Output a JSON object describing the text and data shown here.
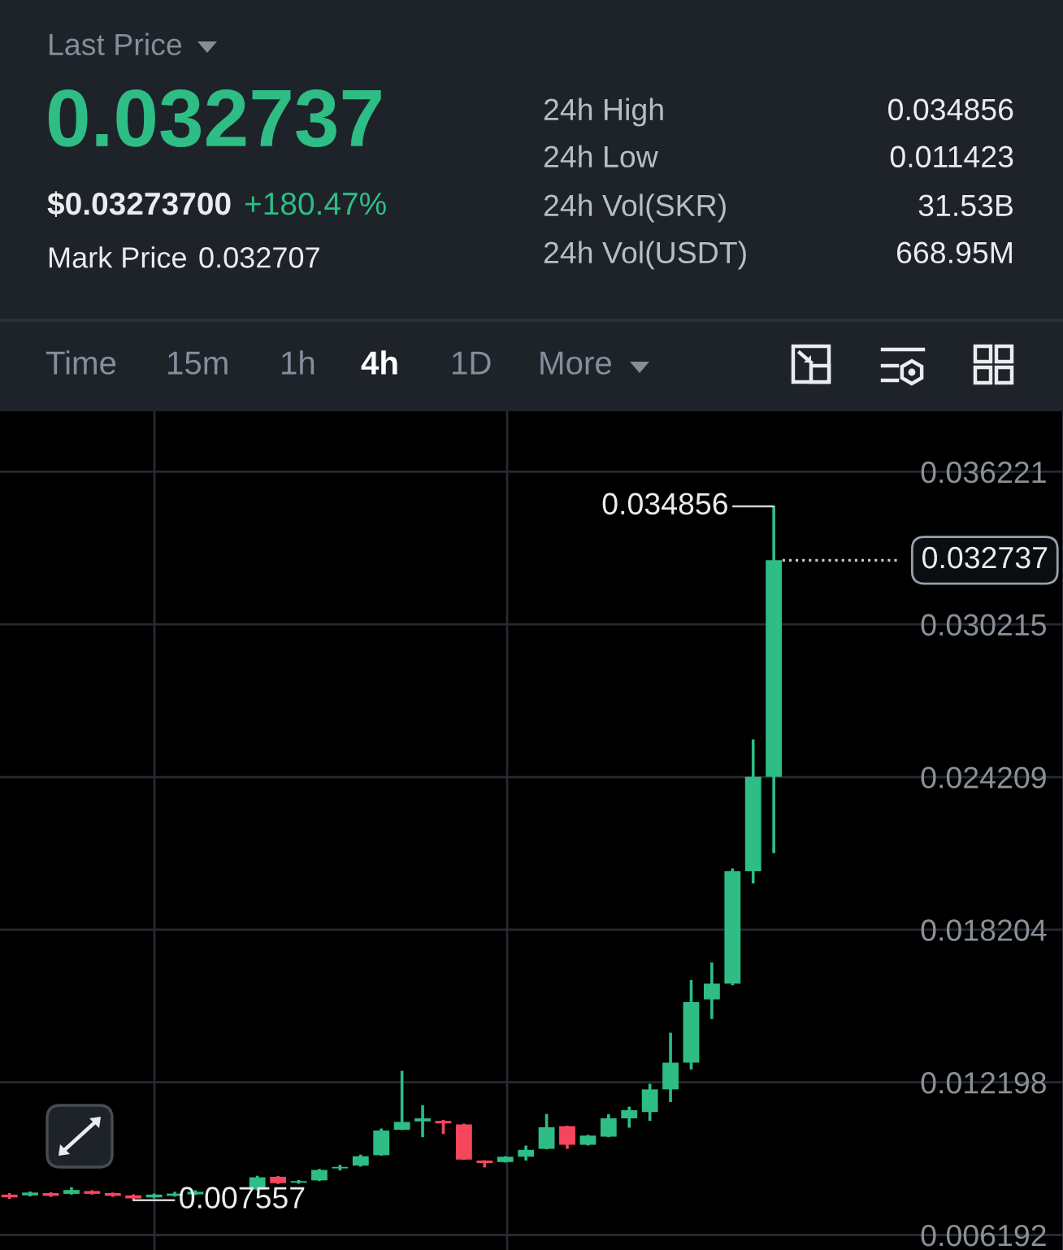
{
  "chart_data": {
    "type": "candlestick",
    "categories": [
      null,
      null,
      null,
      null,
      null,
      null,
      null,
      null,
      null,
      null,
      null,
      null,
      null,
      null,
      null,
      null,
      null,
      null,
      null,
      null,
      null,
      null,
      null,
      null,
      null,
      null,
      null,
      null,
      null,
      null,
      null,
      null,
      null,
      null,
      null,
      null,
      null,
      null
    ],
    "ohlc": [
      [
        0.00778,
        0.00784,
        0.00761,
        0.00767
      ],
      [
        0.00775,
        0.0079,
        0.00771,
        0.00786
      ],
      [
        0.00784,
        0.00787,
        0.00769,
        0.00773
      ],
      [
        0.00781,
        0.00807,
        0.00778,
        0.00796
      ],
      [
        0.00792,
        0.00795,
        0.00778,
        0.00781
      ],
      [
        0.00784,
        0.00786,
        0.00769,
        0.00773
      ],
      [
        0.00775,
        0.00779,
        0.007557,
        0.00763
      ],
      [
        0.00767,
        0.00782,
        0.00763,
        0.00778
      ],
      [
        0.00773,
        0.00789,
        0.0077,
        0.00782
      ],
      [
        0.00779,
        0.00795,
        0.00776,
        0.00789
      ],
      null,
      null,
      [
        0.00798,
        0.00852,
        0.00795,
        0.00846
      ],
      [
        0.00848,
        0.00851,
        0.0082,
        0.00823
      ],
      [
        0.00825,
        0.00835,
        0.00821,
        0.00831
      ],
      [
        0.00834,
        0.00879,
        0.00831,
        0.00875
      ],
      [
        0.00881,
        0.00895,
        0.00873,
        0.00887
      ],
      [
        0.00892,
        0.00935,
        0.00888,
        0.00929
      ],
      [
        0.00933,
        0.01038,
        0.00931,
        0.0103
      ],
      [
        0.01033,
        0.01265,
        0.01032,
        0.01064
      ],
      [
        0.01066,
        0.0113,
        0.01004,
        0.01078
      ],
      [
        0.01068,
        0.01072,
        0.01016,
        0.01058
      ],
      [
        0.01054,
        0.01057,
        0.00915,
        0.00916
      ],
      [
        0.00912,
        0.00913,
        0.00885,
        0.00902
      ],
      [
        0.00906,
        0.00929,
        0.00904,
        0.00927
      ],
      [
        0.00927,
        0.00971,
        0.00912,
        0.00954
      ],
      [
        0.00958,
        0.01095,
        0.00956,
        0.01043
      ],
      [
        0.01047,
        0.01049,
        0.00958,
        0.00974
      ],
      [
        0.00974,
        0.01013,
        0.00971,
        0.0101
      ],
      [
        0.01006,
        0.01094,
        0.01004,
        0.01078
      ],
      [
        0.01078,
        0.01124,
        0.01041,
        0.0111
      ],
      [
        0.01103,
        0.01214,
        0.01068,
        0.01192
      ],
      [
        0.01192,
        0.01415,
        0.01142,
        0.01297
      ],
      [
        0.01297,
        0.01622,
        0.0127,
        0.01535
      ],
      [
        0.01546,
        0.01691,
        0.01469,
        0.01608
      ],
      [
        0.01608,
        0.02061,
        0.01602,
        0.0205
      ],
      [
        0.0205,
        0.02569,
        0.02002,
        0.02422
      ],
      [
        0.02422,
        0.034856,
        0.02121,
        0.032737
      ]
    ],
    "colors": [
      "#f6465d",
      "#2ebd85",
      "#f6465d",
      "#2ebd85",
      "#f6465d",
      "#f6465d",
      "#f6465d",
      "#2ebd85",
      "#2ebd85",
      "#2ebd85",
      null,
      null,
      "#2ebd85",
      "#f6465d",
      "#2ebd85",
      "#2ebd85",
      "#2ebd85",
      "#2ebd85",
      "#2ebd85",
      "#2ebd85",
      "#2ebd85",
      "#f6465d",
      "#f6465d",
      "#f6465d",
      "#2ebd85",
      "#2ebd85",
      "#2ebd85",
      "#f6465d",
      "#2ebd85",
      "#2ebd85",
      "#2ebd85",
      "#2ebd85",
      "#2ebd85",
      "#2ebd85",
      "#2ebd85",
      "#2ebd85",
      "#2ebd85",
      "#2ebd85"
    ],
    "ylim": [
      0.0056,
      0.0386
    ],
    "yticks": [
      0.006192,
      0.012198,
      0.018204,
      0.024209,
      0.030215,
      0.036221
    ],
    "grid": "y",
    "ref_lines": [
      {
        "axis": "y",
        "value": 0.032737,
        "label": "0.032737",
        "line_style": "dotted"
      }
    ],
    "annotations": [
      "0.034856",
      "0.007557",
      "Last Price",
      "0.032737",
      "$0.03273700",
      "+180.47%",
      "Mark Price",
      "0.032707",
      "24h High",
      "0.034856",
      "24h Low",
      "0.011423",
      "24h Vol(SKR)",
      "31.53B",
      "24h Vol(USDT)",
      "668.95M",
      "Time",
      "15m",
      "1h",
      "4h",
      "1D",
      "More"
    ]
  }
}
